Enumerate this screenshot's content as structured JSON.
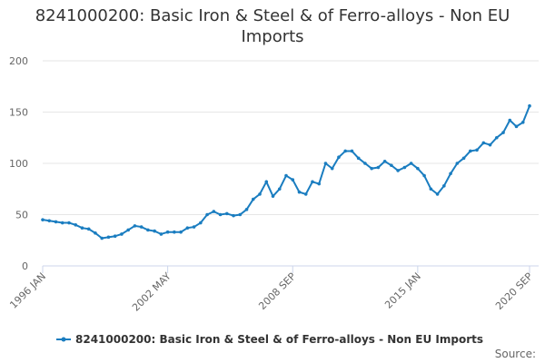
{
  "chart_data": {
    "type": "line",
    "title": "8241000200: Basic Iron & Steel & of Ferro-alloys - Non EU Imports",
    "source_label": "Source:",
    "categories": [
      "1996 JAN",
      null,
      null,
      null,
      null,
      null,
      null,
      null,
      null,
      null,
      null,
      null,
      null,
      null,
      null,
      null,
      null,
      null,
      null,
      "2002 MAY",
      null,
      null,
      null,
      null,
      null,
      null,
      null,
      null,
      null,
      null,
      null,
      null,
      null,
      null,
      null,
      null,
      null,
      null,
      "2008 SEP",
      null,
      null,
      null,
      null,
      null,
      null,
      null,
      null,
      null,
      null,
      null,
      null,
      null,
      null,
      null,
      null,
      null,
      null,
      "2015 JAN",
      null,
      null,
      null,
      null,
      null,
      null,
      null,
      null,
      null,
      null,
      null,
      null,
      null,
      null,
      null,
      null,
      "2020 SEP"
    ],
    "series": [
      {
        "name": "8241000200: Basic Iron & Steel & of Ferro-alloys - Non EU Imports",
        "color": "#1a7dc0",
        "values": [
          45,
          44,
          43,
          42,
          42,
          40,
          37,
          36,
          32,
          27,
          28,
          29,
          31,
          35,
          39,
          38,
          35,
          34,
          31,
          33,
          33,
          33,
          37,
          38,
          42,
          50,
          53,
          50,
          51,
          49,
          50,
          55,
          65,
          70,
          82,
          68,
          75,
          88,
          84,
          72,
          70,
          82,
          80,
          100,
          95,
          106,
          112,
          112,
          105,
          100,
          95,
          96,
          102,
          98,
          93,
          96,
          100,
          95,
          88,
          75,
          70,
          78,
          90,
          100,
          105,
          112,
          113,
          120,
          118,
          125,
          130,
          142,
          136,
          140,
          156
        ]
      }
    ],
    "ylim": [
      0,
      200
    ],
    "yticks": [
      0,
      50,
      100,
      150,
      200
    ],
    "grid": true
  }
}
